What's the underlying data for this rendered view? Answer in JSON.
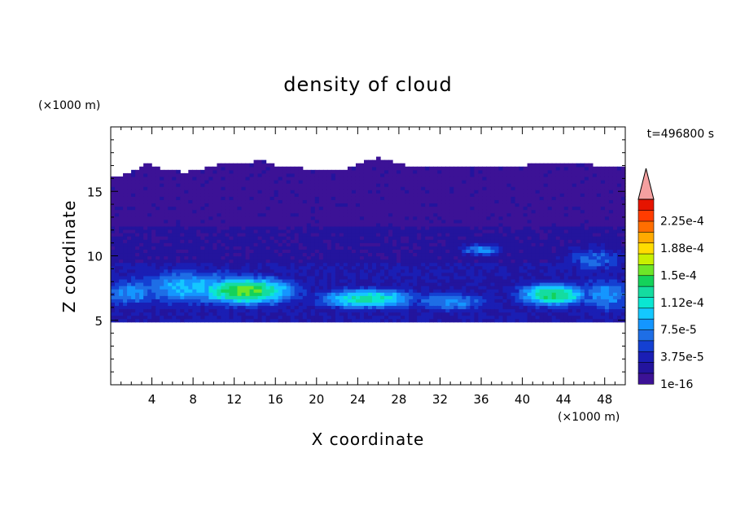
{
  "chart_data": {
    "type": "heatmap",
    "title": "density of cloud",
    "time_label": "t=496800 s",
    "xlabel": "X coordinate",
    "ylabel": "Z coordinate",
    "x_unit": "(×1000 m)",
    "y_unit": "(×1000 m)",
    "x_ticks": [
      4,
      8,
      12,
      16,
      20,
      24,
      28,
      32,
      36,
      40,
      44,
      48
    ],
    "y_ticks": [
      5,
      10,
      15
    ],
    "xlim": [
      0,
      50
    ],
    "ylim": [
      0,
      20
    ],
    "colorbar": {
      "labels": [
        "1e-16",
        "3.75e-5",
        "7.5e-5",
        "1.12e-4",
        "1.5e-4",
        "1.88e-4",
        "2.25e-4"
      ],
      "colors": [
        "#3c1296",
        "#23149d",
        "#1a1eb4",
        "#1440d2",
        "#1e6ee6",
        "#1496ff",
        "#14c8ff",
        "#0ae6d2",
        "#14dca0",
        "#14d25a",
        "#6ee628",
        "#c8f000",
        "#ffdc00",
        "#ffaa00",
        "#ff6e00",
        "#ff3c00",
        "#e61400"
      ],
      "over_color": "#f5a0a0"
    },
    "field": {
      "base_color_level": 0,
      "cloud_top_km": [
        16.0,
        16.4,
        17.2,
        16.6,
        16.5,
        16.8,
        17.2,
        17.2,
        17.4,
        16.8,
        16.8,
        16.6,
        16.6,
        17.2,
        17.6,
        17.2,
        16.8,
        16.9,
        16.9,
        16.9,
        16.8,
        16.8,
        17.1,
        17.2,
        17.2,
        17.2,
        16.8,
        16.9
      ],
      "cloud_base_km": 5.0,
      "layers": [
        {
          "z_range": [
            10.6,
            12.2
          ],
          "level": 1
        },
        {
          "z_range": [
            9.2,
            10.6
          ],
          "level": 1
        }
      ],
      "hotspots": [
        {
          "x_km": 13,
          "z_km": 7.3,
          "peak_level": 10,
          "x_width_km": 5,
          "z_width_km": 1.1
        },
        {
          "x_km": 8,
          "z_km": 7.6,
          "peak_level": 6,
          "x_width_km": 6,
          "z_width_km": 1.4
        },
        {
          "x_km": 25,
          "z_km": 6.7,
          "peak_level": 8,
          "x_width_km": 5,
          "z_width_km": 0.8
        },
        {
          "x_km": 43,
          "z_km": 7.0,
          "peak_level": 9,
          "x_width_km": 3.5,
          "z_width_km": 0.9
        },
        {
          "x_km": 2,
          "z_km": 7.2,
          "peak_level": 5,
          "x_width_km": 3,
          "z_width_km": 1.2
        },
        {
          "x_km": 33,
          "z_km": 6.5,
          "peak_level": 5,
          "x_width_km": 4,
          "z_width_km": 0.8
        },
        {
          "x_km": 48,
          "z_km": 7.0,
          "peak_level": 5,
          "x_width_km": 3,
          "z_width_km": 1.4
        },
        {
          "x_km": 36,
          "z_km": 10.5,
          "peak_level": 5,
          "x_width_km": 2,
          "z_width_km": 0.5
        },
        {
          "x_km": 47,
          "z_km": 9.8,
          "peak_level": 4,
          "x_width_km": 3,
          "z_width_km": 1.0
        }
      ]
    }
  }
}
